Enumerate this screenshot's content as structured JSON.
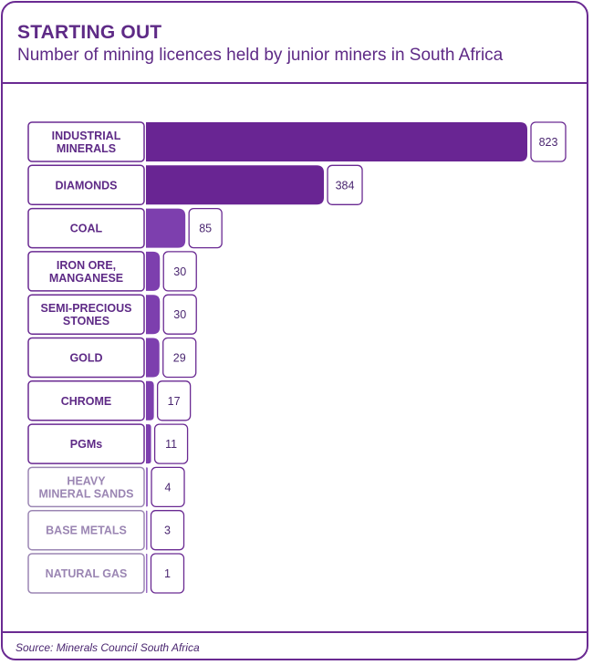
{
  "header": {
    "title": "STARTING OUT",
    "subtitle": "Number of mining licences held by junior miners in South Africa"
  },
  "footer": {
    "source": "Source: Minerals Council South Africa"
  },
  "colors": {
    "frame": "#6a2a92",
    "bar_dark": "#692593",
    "bar_mid": "#7d3fae",
    "bar_light": "#9a6bc4",
    "label_text": "#5e2a86",
    "label_text_faded": "#9b86b3"
  },
  "chart_data": {
    "type": "bar",
    "orientation": "horizontal",
    "categories": [
      [
        "INDUSTRIAL",
        "MINERALS"
      ],
      [
        "DIAMONDS"
      ],
      [
        "COAL"
      ],
      [
        "IRON ORE,",
        "MANGANESE"
      ],
      [
        "SEMI-PRECIOUS",
        "STONES"
      ],
      [
        "GOLD"
      ],
      [
        "CHROME"
      ],
      [
        "PGMs"
      ],
      [
        "HEAVY",
        "MINERAL SANDS"
      ],
      [
        "BASE METALS"
      ],
      [
        "NATURAL GAS"
      ]
    ],
    "values": [
      823,
      384,
      85,
      30,
      30,
      29,
      17,
      11,
      4,
      3,
      1
    ],
    "xlim": [
      0,
      823
    ],
    "grid": false,
    "legend": "none"
  }
}
